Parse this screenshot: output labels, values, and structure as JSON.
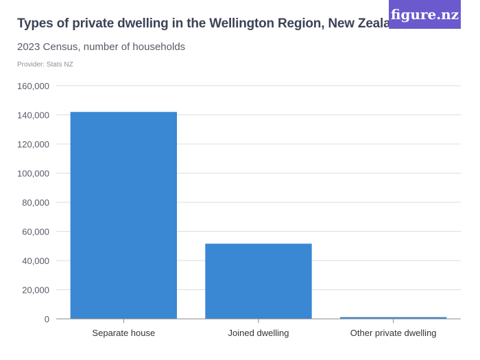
{
  "header": {
    "title": "Types of private dwelling in the Wellington Region, New Zealand",
    "subtitle": "2023 Census, number of households",
    "provider": "Provider: Stats NZ",
    "logo": "figure.nz"
  },
  "colors": {
    "bar": "#3a87d4",
    "grid": "#dddddd",
    "axis": "#888888",
    "text": "#555a66",
    "logo_bg": "#6a5acd"
  },
  "chart_data": {
    "type": "bar",
    "title": "Types of private dwelling in the Wellington Region, New Zealand",
    "subtitle": "2023 Census, number of households",
    "categories": [
      "Separate house",
      "Joined dwelling",
      "Other private dwelling"
    ],
    "values": [
      142000,
      51600,
      1200
    ],
    "yticks": [
      0,
      20000,
      40000,
      60000,
      80000,
      100000,
      120000,
      140000,
      160000
    ],
    "ytick_labels": [
      "0",
      "20,000",
      "40,000",
      "60,000",
      "80,000",
      "100,000",
      "120,000",
      "140,000",
      "160,000"
    ],
    "ylim": [
      0,
      160000
    ],
    "grid": true,
    "legend": "none"
  }
}
